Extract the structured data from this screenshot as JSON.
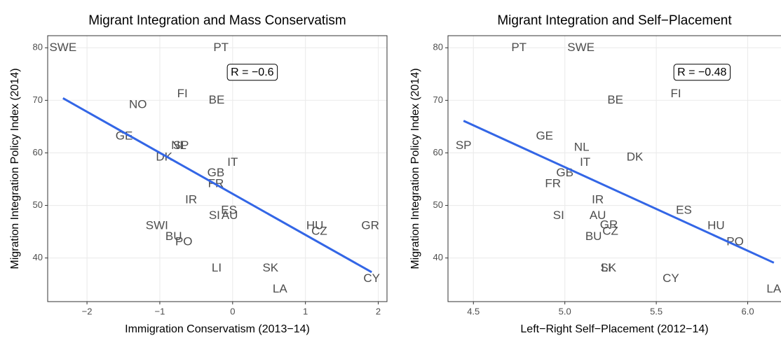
{
  "chart_data": [
    {
      "type": "scatter",
      "title": "Migrant Integration and Mass Conservatism",
      "x_label": "Immigration Conservatism (2013−14)",
      "y_label": "Migration Integration Policy Index (2014)",
      "annotation": "R = −0.6",
      "points": {
        "labels": [
          "SWE",
          "PT",
          "FI",
          "BE",
          "NO",
          "GE",
          "NL",
          "SP",
          "DK",
          "IT",
          "GB",
          "FR",
          "IR",
          "ES",
          "SI",
          "AU",
          "SWI",
          "HU",
          "CZ",
          "GR",
          "BU",
          "PO",
          "LI",
          "SK",
          "CY",
          "LA"
        ],
        "x": [
          -2.33,
          -0.16,
          -0.69,
          -0.22,
          -1.3,
          -1.49,
          -0.74,
          -0.71,
          -0.94,
          0.0,
          -0.23,
          -0.23,
          -0.57,
          -0.05,
          -0.25,
          -0.04,
          -1.04,
          1.13,
          1.19,
          1.89,
          -0.81,
          -0.67,
          -0.22,
          0.52,
          1.91,
          0.65
        ],
        "y": [
          80,
          80,
          71.2,
          70,
          69.1,
          63.1,
          61.3,
          61.3,
          59.1,
          58.1,
          56.1,
          54.1,
          51,
          49,
          48,
          48,
          46.1,
          46.1,
          45,
          46.1,
          44,
          43,
          38,
          38,
          36,
          34
        ],
        "color": "#4d4d4d"
      },
      "fit": {
        "x": [
          -2.33,
          1.91
        ],
        "y": [
          70.4,
          37.3
        ],
        "color": "#3366e6"
      },
      "xlim": [
        -2.54,
        2.12
      ],
      "ylim": [
        31.7,
        82.3
      ],
      "xticks": [
        {
          "value": -2,
          "label": "−2"
        },
        {
          "value": -1,
          "label": "−1"
        },
        0,
        1,
        2
      ],
      "yticks": [
        40,
        50,
        60,
        70,
        80
      ],
      "grid": true
    },
    {
      "type": "scatter",
      "title": "Migrant Integration and Self−Placement",
      "x_label": "Left−Right Self−Placement (2012−14)",
      "y_label": "Migration Integration Policy Index (2014)",
      "annotation": "R = −0.48",
      "points": {
        "labels": [
          "PT",
          "SWE",
          "FI",
          "BE",
          "SP",
          "GE",
          "NL",
          "IT",
          "DK",
          "GB",
          "FR",
          "IR",
          "ES",
          "AU",
          "SI",
          "HU",
          "GR",
          "CZ",
          "PO",
          "BU",
          "LI",
          "SK",
          "CY",
          "LA"
        ],
        "x": [
          4.749,
          5.088,
          5.607,
          5.276,
          4.446,
          4.889,
          5.092,
          5.111,
          5.383,
          5.0,
          4.935,
          5.18,
          5.651,
          5.18,
          4.966,
          5.827,
          5.241,
          5.249,
          5.931,
          5.157,
          5.226,
          5.238,
          5.58,
          6.143
        ],
        "y": [
          80,
          80,
          71.2,
          70,
          61.3,
          63.1,
          61,
          58.1,
          59.1,
          56.1,
          54.1,
          51,
          49,
          48,
          48,
          46.1,
          46.2,
          45,
          43,
          44,
          38,
          38,
          36,
          34
        ],
        "color": "#4d4d4d"
      },
      "fit": {
        "x": [
          4.446,
          6.143
        ],
        "y": [
          66.1,
          39.1
        ],
        "color": "#3366e6"
      },
      "xlim": [
        4.361,
        6.228
      ],
      "ylim": [
        31.7,
        82.3
      ],
      "xticks": [
        4.5,
        {
          "value": 5,
          "label": "5.0"
        },
        5.5,
        {
          "value": 6,
          "label": "6.0"
        }
      ],
      "yticks": [
        40,
        50,
        60,
        70,
        80
      ],
      "grid": true
    }
  ]
}
